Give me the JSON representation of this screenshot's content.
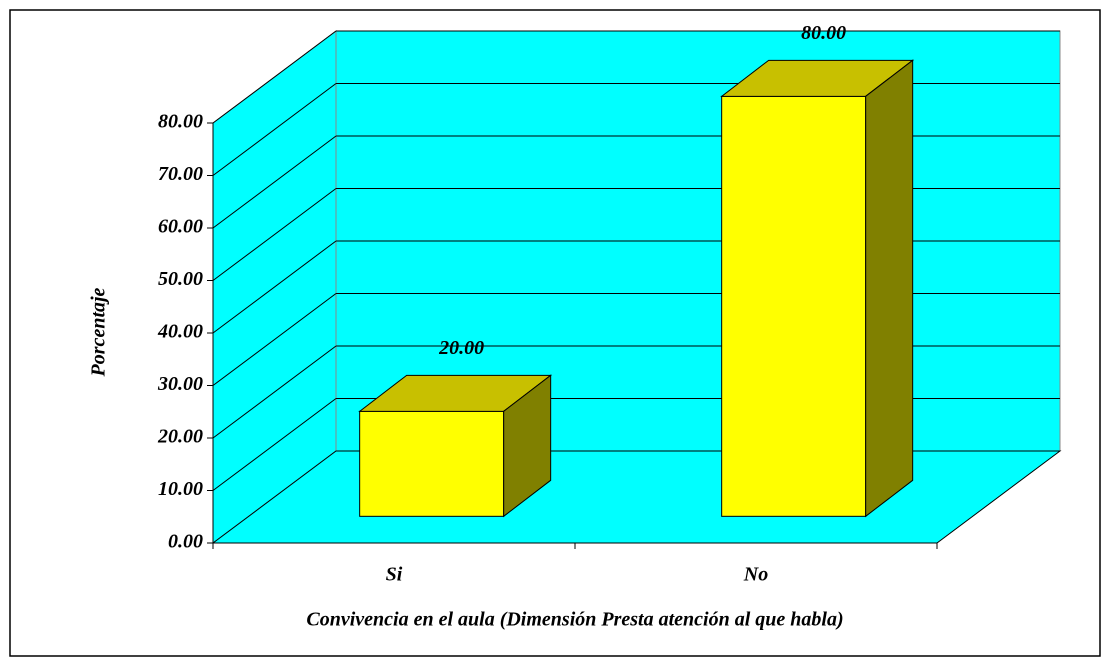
{
  "chart_data": {
    "type": "bar3d",
    "categories": [
      "Si",
      "No"
    ],
    "values": [
      20,
      80
    ],
    "value_labels": [
      "20.00",
      "80.00"
    ],
    "color": "#ffff00",
    "wall_color": "#00ffff",
    "y_label": "Porcentaje",
    "x_label": "Convivencia en el aula (Dimensión Presta atención al que habla)",
    "ylim": [
      0,
      80
    ],
    "yticks": [
      {
        "value": 0,
        "label": "0.00"
      },
      {
        "value": 10,
        "label": "10.00"
      },
      {
        "value": 20,
        "label": "20.00"
      },
      {
        "value": 30,
        "label": "30.00"
      },
      {
        "value": 40,
        "label": "40.00"
      },
      {
        "value": 50,
        "label": "50.00"
      },
      {
        "value": 60,
        "label": "60.00"
      },
      {
        "value": 70,
        "label": "70.00"
      },
      {
        "value": 80,
        "label": "80.00"
      }
    ],
    "grid": true
  }
}
